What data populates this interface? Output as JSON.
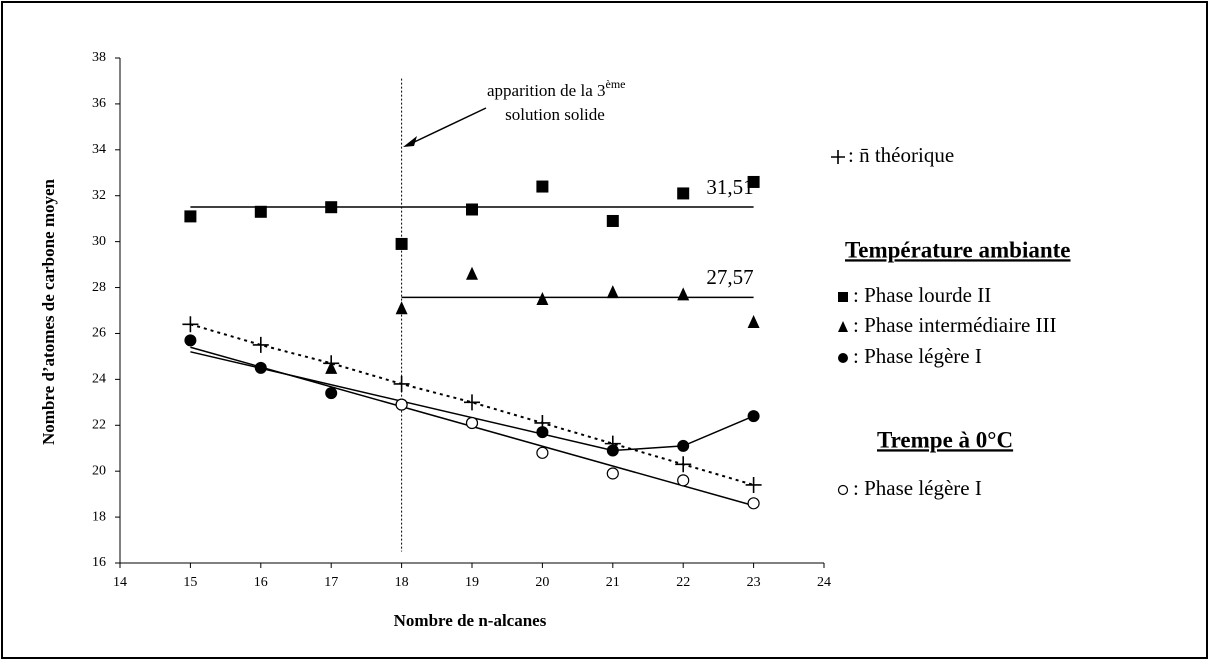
{
  "chart_data": {
    "type": "scatter",
    "xlabel": "Nombre de n-alcanes",
    "ylabel": "Nombre d’atomes de carbone moyen",
    "xlim": [
      14,
      24
    ],
    "xticks": [
      14,
      15,
      16,
      17,
      18,
      19,
      20,
      21,
      22,
      23,
      24
    ],
    "ylim": [
      16,
      38
    ],
    "yticks": [
      16,
      18,
      20,
      22,
      24,
      26,
      28,
      30,
      32,
      34,
      36,
      38
    ],
    "annotation": {
      "text": "apparition de la 3",
      "sup": "ème",
      "text2": "solution solide",
      "x": 18
    },
    "legend_headings": [
      "Température ambiante",
      "Trempe à 0°C"
    ],
    "series": [
      {
        "name": ": n̄ théorique",
        "marker": "plus",
        "color": "#000",
        "line_style": "dotted",
        "x": [
          15,
          16,
          17,
          18,
          19,
          20,
          21,
          22,
          23
        ],
        "values": [
          26.4,
          25.5,
          24.7,
          23.8,
          23.0,
          22.1,
          21.2,
          20.3,
          19.4
        ]
      },
      {
        "name": ": Phase lourde II",
        "marker": "square",
        "color": "#000",
        "x": [
          15,
          16,
          17,
          18,
          19,
          20,
          21,
          22,
          23
        ],
        "values": [
          31.1,
          31.3,
          31.5,
          29.9,
          31.4,
          32.4,
          30.9,
          32.1,
          32.6
        ],
        "level": 31.51,
        "level_label": "31,51",
        "level_x": [
          15,
          23
        ]
      },
      {
        "name": ": Phase intermédiaire III",
        "marker": "triangle",
        "color": "#000",
        "x": [
          17,
          18,
          19,
          20,
          21,
          22,
          23
        ],
        "values": [
          24.5,
          27.1,
          28.6,
          27.5,
          27.8,
          27.7,
          26.5
        ],
        "level": 27.57,
        "level_label": "27,57",
        "level_x": [
          18,
          23
        ]
      },
      {
        "name": ": Phase légère I",
        "marker": "circle",
        "color": "#000",
        "x": [
          15,
          16,
          17,
          18,
          19,
          20,
          21,
          22,
          23
        ],
        "values": [
          25.7,
          24.5,
          23.4,
          22.9,
          22.1,
          21.7,
          20.9,
          21.1,
          22.4
        ],
        "line": {
          "x": [
            15,
            21,
            22,
            23
          ],
          "values": [
            25.2,
            20.9,
            21.1,
            22.4
          ]
        }
      },
      {
        "name": ": Phase légère I",
        "marker": "open-circle",
        "color": "#000",
        "x": [
          18,
          19,
          20,
          21,
          22,
          23
        ],
        "values": [
          22.9,
          22.1,
          20.8,
          19.9,
          19.6,
          18.6
        ],
        "line": {
          "x": [
            15,
            23
          ],
          "values": [
            25.4,
            18.5
          ]
        }
      }
    ]
  }
}
